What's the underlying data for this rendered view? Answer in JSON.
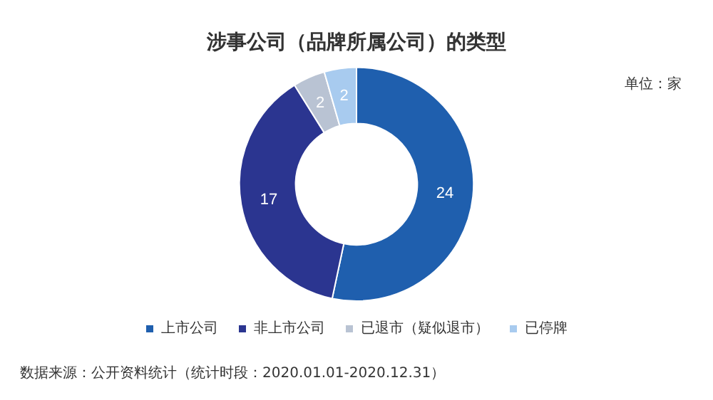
{
  "chart_data": {
    "type": "donut",
    "title": "涉事公司（品牌所属公司）的类型",
    "categories": [
      "上市公司",
      "非上市公司",
      "已退市（疑似退市）",
      "已停牌"
    ],
    "values": [
      24,
      17,
      2,
      2
    ],
    "colors": [
      "#1f5fae",
      "#2b3590",
      "#b9c3d3",
      "#a8cbef"
    ],
    "data_labels": true,
    "legend": "bottom",
    "annotations": [
      "单位：家",
      "数据来源：公开资料统计（统计时段：2020.01.01-2020.12.31）"
    ]
  }
}
